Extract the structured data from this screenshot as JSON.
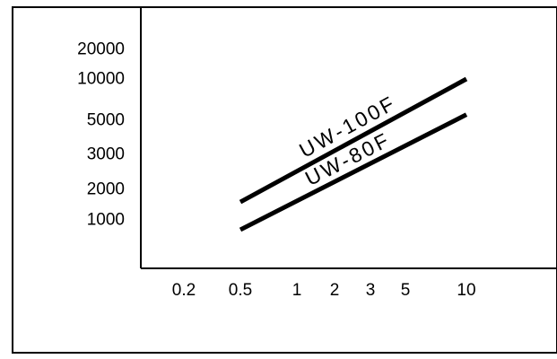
{
  "chart_data": {
    "type": "line",
    "title": "",
    "xlabel": "",
    "ylabel": "",
    "x_ticks": [
      "0.2",
      "0.5",
      "1",
      "2",
      "3",
      "5",
      "10"
    ],
    "y_ticks": [
      "20000",
      "10000",
      "5000",
      "3000",
      "2000",
      "1000"
    ],
    "x_tick_values": [
      0.2,
      0.5,
      1,
      2,
      3,
      5,
      10
    ],
    "y_tick_values": [
      20000,
      10000,
      5000,
      3000,
      2000,
      1000
    ],
    "grid": false,
    "legend": "none",
    "series": [
      {
        "name": "UW-100F",
        "x": [
          0.5,
          10
        ],
        "y": [
          1500,
          10000
        ]
      },
      {
        "name": "UW-80F",
        "x": [
          0.5,
          10
        ],
        "y": [
          800,
          5500
        ]
      }
    ]
  },
  "colors": {
    "line": "#000000",
    "frame": "#000000",
    "background": "#ffffff"
  }
}
